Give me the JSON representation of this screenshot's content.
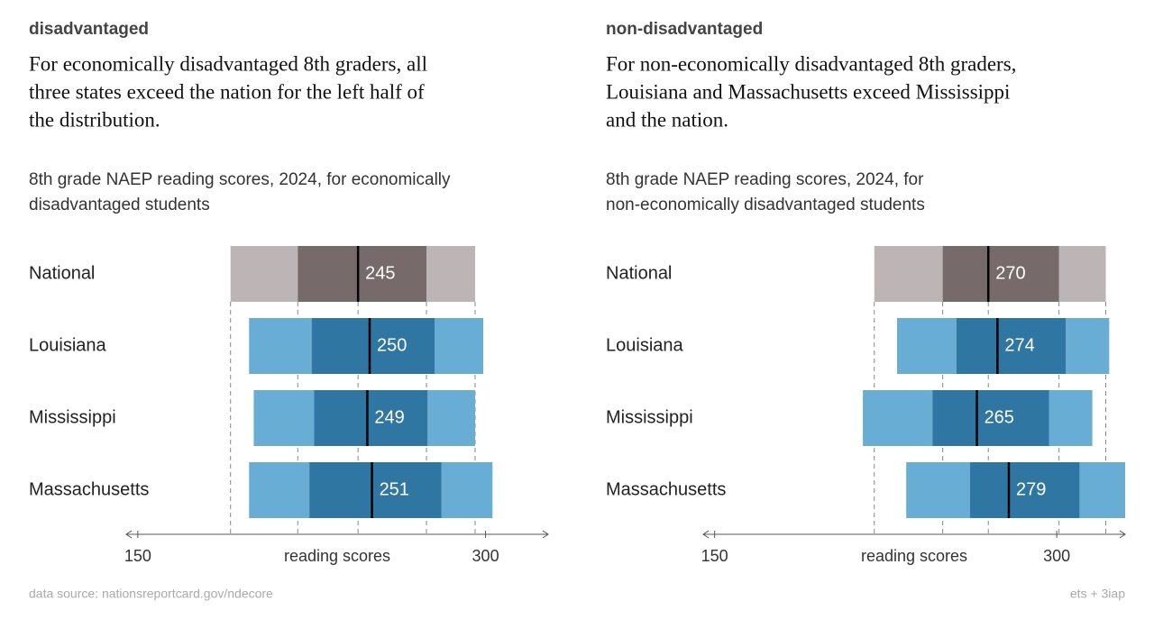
{
  "chart_data": [
    {
      "type": "boxplot",
      "panel_label": "disadvantaged",
      "headline": [
        "For economically disadvantaged 8th graders, all",
        "three states exceed the nation for the left half of",
        "the distribution."
      ],
      "subtitle": [
        "8th grade NAEP reading scores, 2024, for economically",
        "disadvantaged students"
      ],
      "categories": [
        "National",
        "Louisiana",
        "Mississippi",
        "Massachusetts"
      ],
      "values": [
        245,
        250,
        249,
        251
      ],
      "p10": [
        190,
        198,
        200,
        198
      ],
      "p25": [
        219,
        225,
        226,
        224
      ],
      "p75": [
        274.5,
        278,
        275,
        281
      ],
      "p90": [
        295.5,
        299,
        295.5,
        303
      ],
      "colors": {
        "national_outer": "#bdb5b5",
        "national_inner": "#776a6a",
        "state_outer": "#68add3",
        "state_inner": "#2f76a2"
      },
      "xlabel": "reading scores",
      "xlim": [
        145,
        327
      ],
      "xticks": [
        150,
        300
      ]
    },
    {
      "type": "boxplot",
      "panel_label": "non-disadvantaged",
      "headline": [
        "For non-economically disadvantaged 8th graders,",
        "Louisiana and Massachusetts exceed Mississippi",
        "and the nation."
      ],
      "subtitle": [
        "8th grade NAEP reading scores, 2024, for",
        "non-economically disadvantaged students"
      ],
      "categories": [
        "National",
        "Louisiana",
        "Mississippi",
        "Massachusetts"
      ],
      "values": [
        270,
        274,
        265,
        279
      ],
      "p10": [
        220,
        230,
        215,
        234
      ],
      "p25": [
        250,
        256,
        245.5,
        262
      ],
      "p75": [
        301,
        304,
        296.6,
        310
      ],
      "p90": [
        321.5,
        323,
        315.6,
        330
      ],
      "colors": {
        "national_outer": "#bdb5b5",
        "national_inner": "#776a6a",
        "state_outer": "#68add3",
        "state_inner": "#2f76a2"
      },
      "xlabel": "reading scores",
      "xlim": [
        145,
        330
      ],
      "xticks": [
        150,
        300
      ]
    }
  ],
  "footer": {
    "source": "data source: nationsreportcard.gov/ndecore",
    "credit": "ets + 3iap"
  }
}
